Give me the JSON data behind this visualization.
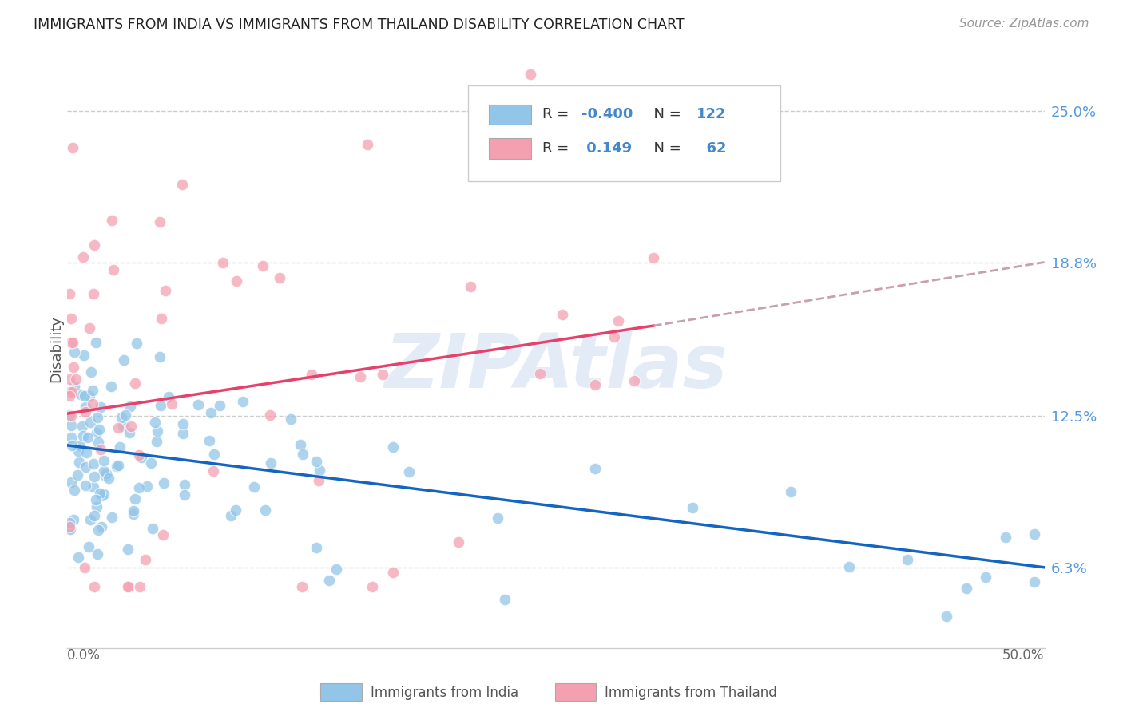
{
  "title": "IMMIGRANTS FROM INDIA VS IMMIGRANTS FROM THAILAND DISABILITY CORRELATION CHART",
  "source": "Source: ZipAtlas.com",
  "ylabel": "Disability",
  "yticks": [
    "6.3%",
    "12.5%",
    "18.8%",
    "25.0%"
  ],
  "ytick_vals": [
    0.063,
    0.125,
    0.188,
    0.25
  ],
  "xlim": [
    0.0,
    0.5
  ],
  "ylim": [
    0.03,
    0.275
  ],
  "legend_india": "Immigrants from India",
  "legend_thailand": "Immigrants from Thailand",
  "legend_R_india": "-0.400",
  "legend_N_india": "122",
  "legend_R_thailand": "0.149",
  "legend_N_thailand": "62",
  "color_india": "#92C5E8",
  "color_thailand": "#F4A0B0",
  "trendline_india_color": "#1565C0",
  "trendline_thailand_color": "#E8406A",
  "trendline_dashed_color": "#C8A0A8",
  "india_trend": [
    0.0,
    0.113,
    0.5,
    0.063
  ],
  "thailand_trend_solid": [
    0.0,
    0.126,
    0.3,
    0.162
  ],
  "thailand_trend_dash": [
    0.3,
    0.162,
    0.5,
    0.188
  ],
  "text_color_label": "#333333",
  "text_color_value": "#4488CC",
  "ytick_color": "#5599DD",
  "watermark": "ZIPAtlas",
  "watermark_color": "#E0EAF5"
}
